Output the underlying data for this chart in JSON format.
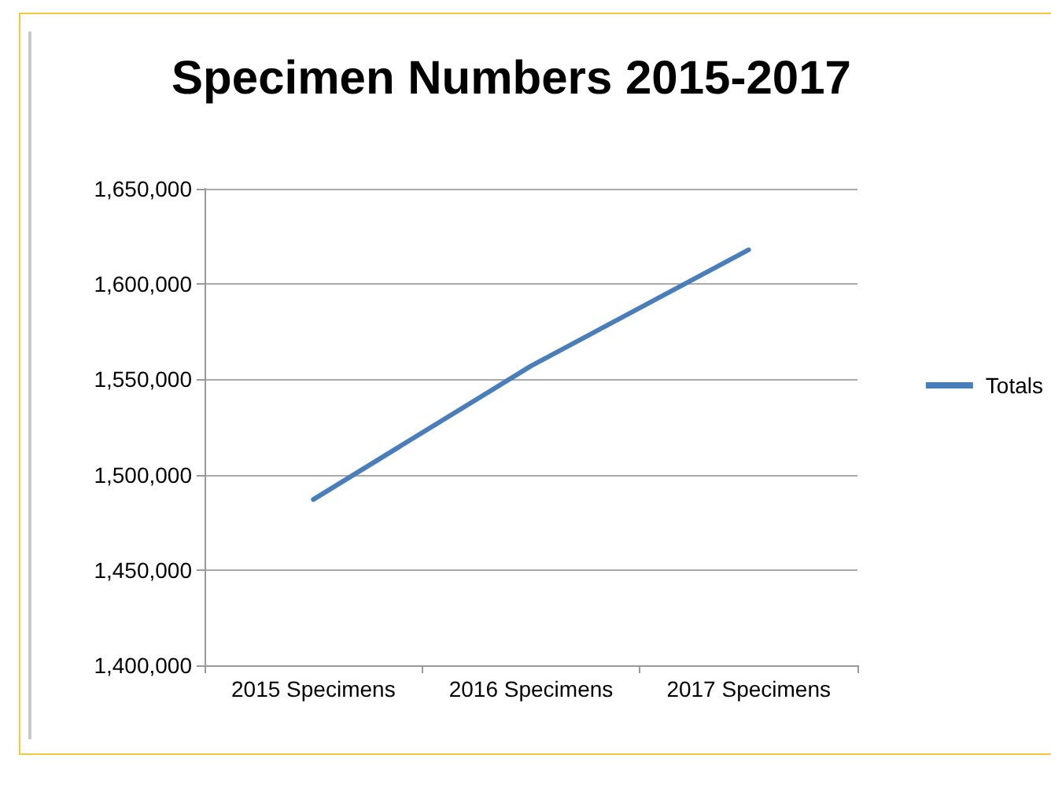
{
  "chart_data": {
    "type": "line",
    "title": "Specimen Numbers 2015-2017",
    "categories": [
      "2015 Specimens",
      "2016 Specimens",
      "2017 Specimens"
    ],
    "series": [
      {
        "name": "Totals",
        "color": "#4a7ebb",
        "values": [
          1487000,
          1557000,
          1618000
        ]
      }
    ],
    "ylim": [
      1400000,
      1650000
    ],
    "yticks": [
      {
        "value": 1400000,
        "label": "1,400,000"
      },
      {
        "value": 1450000,
        "label": "1,450,000"
      },
      {
        "value": 1500000,
        "label": "1,500,000"
      },
      {
        "value": 1550000,
        "label": "1,550,000"
      },
      {
        "value": 1600000,
        "label": "1,600,000"
      },
      {
        "value": 1650000,
        "label": "1,650,000"
      }
    ],
    "grid": "y",
    "legend": "right",
    "marker": "none",
    "line_style": "solid"
  }
}
